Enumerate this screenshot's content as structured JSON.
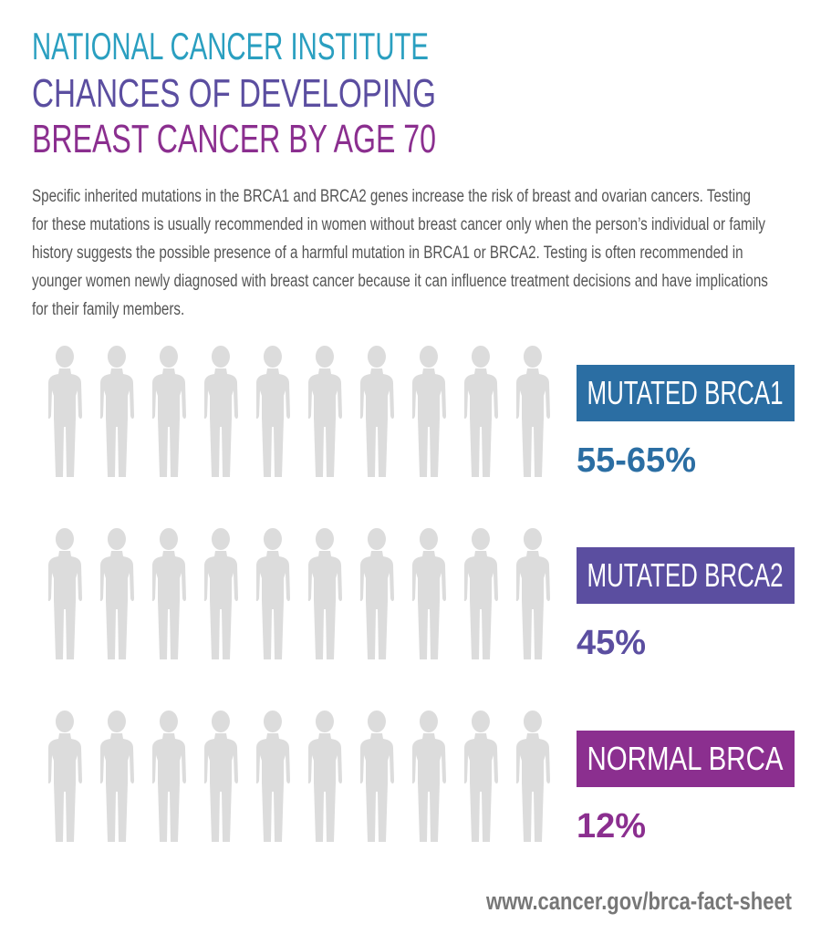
{
  "header": {
    "org": "NATIONAL CANCER INSTITUTE",
    "title": "CHANCES OF DEVELOPING",
    "subtitle": "BREAST CANCER BY AGE 70",
    "description": "Specific inherited mutations in the BRCA1 and BRCA2 genes increase the risk of breast and ovarian cancers. Testing for these mutations is usually recommended in women without breast cancer only when the person’s individual or family history suggests the possible presence of a harmful mutation in BRCA1 or BRCA2. Testing is often recommended in younger women newly diagnosed with breast cancer because it can influence treatment decisions and have implications for their family members."
  },
  "chart_data": {
    "type": "pictograph",
    "xlim": [
      0,
      100
    ],
    "icon_count": 10,
    "empty_color": "#dcdcdc",
    "series": [
      {
        "name": "MUTATED BRCA1",
        "color": "#2b6ea3",
        "values": [
          55,
          65
        ],
        "value_label": "55-65%"
      },
      {
        "name": "MUTATED BRCA2",
        "color": "#5b4ea0",
        "values": [
          45
        ],
        "value_label": "45%"
      },
      {
        "name": "NORMAL BRCA",
        "color": "#8b2f8f",
        "values": [
          12
        ],
        "value_label": "12%"
      }
    ]
  },
  "footer": {
    "url": "www.cancer.gov/brca-fact-sheet"
  }
}
